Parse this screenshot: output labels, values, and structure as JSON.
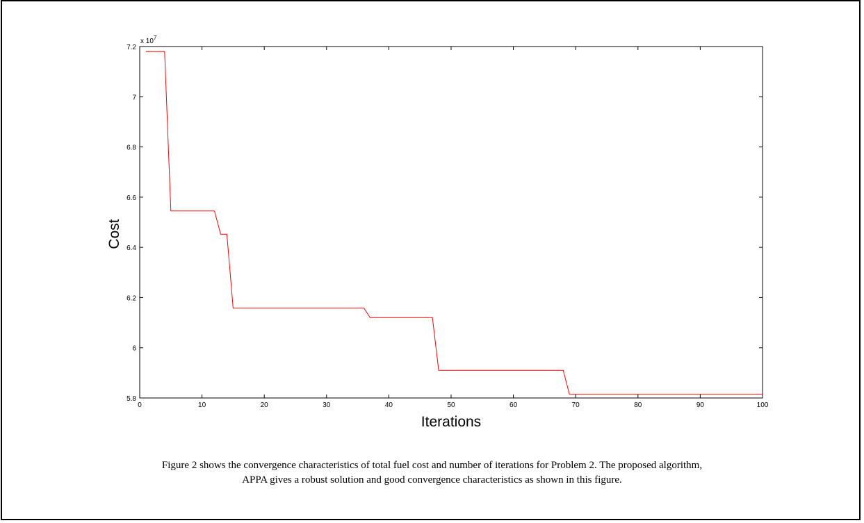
{
  "chart_data": {
    "type": "line",
    "title": "",
    "xlabel": "Iterations",
    "ylabel": "Cost",
    "xlim": [
      0,
      100
    ],
    "ylim": [
      5.8,
      7.2
    ],
    "y_exponent_label": "x 10",
    "y_exponent_power": "7",
    "x_ticks": [
      0,
      10,
      20,
      30,
      40,
      50,
      60,
      70,
      80,
      90,
      100
    ],
    "x_tick_labels": [
      "0",
      "10",
      "20",
      "30",
      "40",
      "50",
      "60",
      "70",
      "80",
      "90",
      "100"
    ],
    "y_ticks": [
      5.8,
      6.0,
      6.2,
      6.4,
      6.6,
      6.8,
      7.0,
      7.2
    ],
    "y_tick_labels": [
      "5.8",
      "6",
      "6.2",
      "6.4",
      "6.6",
      "6.8",
      "7",
      "7.2"
    ],
    "grid": false,
    "series": [
      {
        "color": "#ff0000",
        "x": [
          1,
          4,
          5,
          12,
          13,
          14,
          15,
          36,
          37,
          47,
          48,
          68,
          69,
          100
        ],
        "y": [
          7.18,
          7.18,
          6.545,
          6.545,
          6.452,
          6.452,
          6.158,
          6.158,
          6.12,
          6.12,
          5.91,
          5.91,
          5.815,
          5.815
        ]
      }
    ]
  },
  "caption": {
    "line1": "Figure 2 shows the convergence characteristics of total fuel cost and number of iterations for Problem 2. The proposed algorithm,",
    "line2": "APPA gives a robust solution and good convergence characteristics as shown in this figure."
  }
}
